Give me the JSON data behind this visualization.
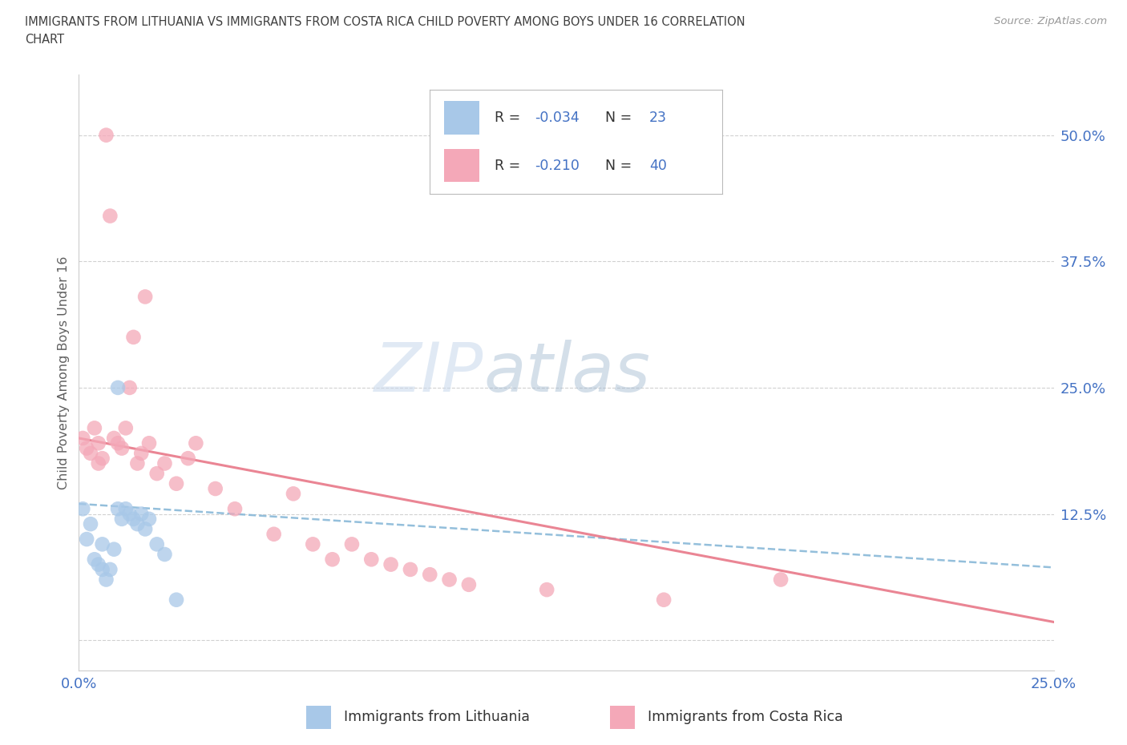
{
  "title_line1": "IMMIGRANTS FROM LITHUANIA VS IMMIGRANTS FROM COSTA RICA CHILD POVERTY AMONG BOYS UNDER 16 CORRELATION",
  "title_line2": "CHART",
  "source": "Source: ZipAtlas.com",
  "ylabel": "Child Poverty Among Boys Under 16",
  "xlim": [
    0.0,
    0.25
  ],
  "ylim": [
    -0.03,
    0.56
  ],
  "xtick_positions": [
    0.0,
    0.05,
    0.1,
    0.15,
    0.2,
    0.25
  ],
  "xtick_labels": [
    "0.0%",
    "",
    "",
    "",
    "",
    "25.0%"
  ],
  "ytick_positions": [
    0.0,
    0.125,
    0.25,
    0.375,
    0.5
  ],
  "ytick_labels": [
    "",
    "12.5%",
    "25.0%",
    "37.5%",
    "50.0%"
  ],
  "watermark_zip": "ZIP",
  "watermark_atlas": "atlas",
  "color_lithuania": "#a8c8e8",
  "color_costa_rica": "#f4a8b8",
  "trendline_color_lithuania": "#88b8d8",
  "trendline_color_costa_rica": "#e87888",
  "legend_r1_val": "-0.034",
  "legend_n1_val": "23",
  "legend_r2_val": "-0.210",
  "legend_n2_val": "40",
  "legend_label1": "Immigrants from Lithuania",
  "legend_label2": "Immigrants from Costa Rica",
  "grid_color": "#cccccc",
  "background_color": "#ffffff",
  "title_color": "#404040",
  "source_color": "#999999",
  "tick_label_color": "#4472c4",
  "ylabel_color": "#606060",
  "legend_text_color": "#333333",
  "rn_color": "#4472c4",
  "lithuania_x": [
    0.001,
    0.002,
    0.003,
    0.004,
    0.005,
    0.006,
    0.006,
    0.007,
    0.008,
    0.009,
    0.01,
    0.01,
    0.011,
    0.012,
    0.013,
    0.014,
    0.015,
    0.016,
    0.017,
    0.018,
    0.02,
    0.022,
    0.025
  ],
  "lithuania_y": [
    0.13,
    0.1,
    0.115,
    0.08,
    0.075,
    0.095,
    0.07,
    0.06,
    0.07,
    0.09,
    0.13,
    0.25,
    0.12,
    0.13,
    0.125,
    0.12,
    0.115,
    0.125,
    0.11,
    0.12,
    0.095,
    0.085,
    0.04
  ],
  "costa_rica_x": [
    0.001,
    0.002,
    0.003,
    0.004,
    0.005,
    0.005,
    0.006,
    0.007,
    0.008,
    0.009,
    0.01,
    0.011,
    0.012,
    0.013,
    0.014,
    0.015,
    0.016,
    0.017,
    0.018,
    0.02,
    0.022,
    0.025,
    0.028,
    0.03,
    0.035,
    0.04,
    0.05,
    0.055,
    0.06,
    0.065,
    0.07,
    0.075,
    0.08,
    0.085,
    0.09,
    0.095,
    0.1,
    0.12,
    0.15,
    0.18
  ],
  "costa_rica_y": [
    0.2,
    0.19,
    0.185,
    0.21,
    0.175,
    0.195,
    0.18,
    0.5,
    0.42,
    0.2,
    0.195,
    0.19,
    0.21,
    0.25,
    0.3,
    0.175,
    0.185,
    0.34,
    0.195,
    0.165,
    0.175,
    0.155,
    0.18,
    0.195,
    0.15,
    0.13,
    0.105,
    0.145,
    0.095,
    0.08,
    0.095,
    0.08,
    0.075,
    0.07,
    0.065,
    0.06,
    0.055,
    0.05,
    0.04,
    0.06
  ],
  "trendline_lith_x0": 0.0,
  "trendline_lith_x1": 0.25,
  "trendline_lith_y0": 0.135,
  "trendline_lith_y1": 0.072,
  "trendline_cr_x0": 0.0,
  "trendline_cr_x1": 0.25,
  "trendline_cr_y0": 0.2,
  "trendline_cr_y1": 0.018
}
